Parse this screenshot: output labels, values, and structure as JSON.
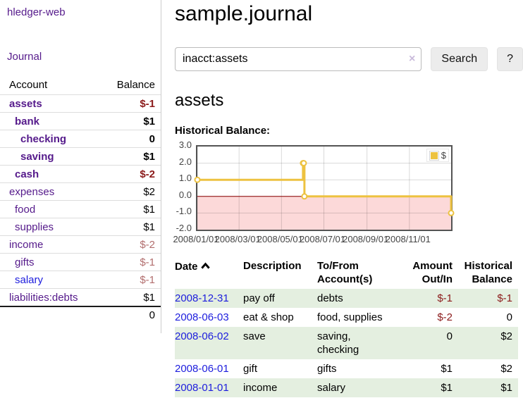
{
  "sidebar": {
    "brand": "hledger-web",
    "nav": {
      "journal": "Journal"
    },
    "accounts_table": {
      "headers": {
        "account": "Account",
        "balance": "Balance"
      },
      "rows": [
        {
          "name": "assets",
          "indent": 1,
          "bold": true,
          "link_color": "purple",
          "balance": "$-1",
          "balance_class": "neg-strong"
        },
        {
          "name": "bank",
          "indent": 2,
          "bold": true,
          "link_color": "purple",
          "balance": "$1",
          "balance_class": ""
        },
        {
          "name": "checking",
          "indent": 3,
          "bold": true,
          "link_color": "purple",
          "balance": "0",
          "balance_class": ""
        },
        {
          "name": "saving",
          "indent": 3,
          "bold": true,
          "link_color": "purple",
          "balance": "$1",
          "balance_class": ""
        },
        {
          "name": "cash",
          "indent": 2,
          "bold": true,
          "link_color": "purple",
          "balance": "$-2",
          "balance_class": "neg-strong"
        },
        {
          "name": "expenses",
          "indent": 1,
          "bold": false,
          "link_color": "purple",
          "balance": "$2",
          "balance_class": ""
        },
        {
          "name": "food",
          "indent": 2,
          "bold": false,
          "link_color": "purple",
          "balance": "$1",
          "balance_class": ""
        },
        {
          "name": "supplies",
          "indent": 2,
          "bold": false,
          "link_color": "purple",
          "balance": "$1",
          "balance_class": ""
        },
        {
          "name": "income",
          "indent": 1,
          "bold": false,
          "link_color": "purple",
          "balance": "$-2",
          "balance_class": "neg-light"
        },
        {
          "name": "gifts",
          "indent": 2,
          "bold": false,
          "link_color": "purple",
          "balance": "$-1",
          "balance_class": "neg-light"
        },
        {
          "name": "salary",
          "indent": 2,
          "bold": false,
          "link_color": "blue",
          "balance": "$-1",
          "balance_class": "neg-light"
        },
        {
          "name": "liabilities:debts",
          "indent": 1,
          "bold": false,
          "link_color": "purple",
          "balance": "$1",
          "balance_class": ""
        }
      ],
      "total": "0"
    }
  },
  "main": {
    "title": "sample.journal",
    "search": {
      "value": "inacct:assets",
      "clear_icon": "×",
      "button": "Search",
      "help_button": "?"
    },
    "account_heading": "assets",
    "chart_heading": "Historical Balance:"
  },
  "chart_data": {
    "type": "line",
    "step": true,
    "title": "Historical Balance",
    "series": [
      {
        "name": "$",
        "color": "#edc240",
        "points": [
          [
            "2008-01-01",
            1
          ],
          [
            "2008-06-01",
            2
          ],
          [
            "2008-06-02",
            2
          ],
          [
            "2008-06-03",
            0
          ],
          [
            "2008-12-31",
            -1
          ]
        ]
      }
    ],
    "x_range": [
      "2008-01-01",
      "2008-12-31"
    ],
    "ylim": [
      -2,
      3
    ],
    "y_ticks": [
      "3.0",
      "2.0",
      "1.0",
      "0.0",
      "-1.0",
      "-2.0"
    ],
    "x_ticks": [
      "2008/01/01",
      "2008/03/01",
      "2008/05/01",
      "2008/07/01",
      "2008/09/01",
      "2008/11/01"
    ],
    "grid": true,
    "negative_fill": "#fcd9d9",
    "zero_line_color": "#8b0000",
    "legend": {
      "label": "$",
      "position": "top-right"
    }
  },
  "register_table": {
    "headers": {
      "date": "Date",
      "sort_icon": "chevron-up",
      "description": "Description",
      "accounts": "To/From Account(s)",
      "amount": "Amount Out/In",
      "balance": "Historical Balance"
    },
    "rows": [
      {
        "date": "2008-12-31",
        "description": "pay off",
        "accounts": "debts",
        "amount": "$-1",
        "amount_class": "neg-strong",
        "balance": "$-1",
        "balance_class": "neg-strong",
        "shaded": true
      },
      {
        "date": "2008-06-03",
        "description": "eat & shop",
        "accounts": "food, supplies",
        "amount": "$-2",
        "amount_class": "neg-strong",
        "balance": "0",
        "balance_class": "",
        "shaded": false
      },
      {
        "date": "2008-06-02",
        "description": "save",
        "accounts": "saving, checking",
        "amount": "0",
        "amount_class": "",
        "balance": "$2",
        "balance_class": "",
        "shaded": true
      },
      {
        "date": "2008-06-01",
        "description": "gift",
        "accounts": "gifts",
        "amount": "$1",
        "amount_class": "",
        "balance": "$2",
        "balance_class": "",
        "shaded": false
      },
      {
        "date": "2008-01-01",
        "description": "income",
        "accounts": "salary",
        "amount": "$1",
        "amount_class": "",
        "balance": "$1",
        "balance_class": "",
        "shaded": true
      }
    ]
  },
  "colors": {
    "accent_purple": "#551a8b",
    "link_blue": "#1d1ddd",
    "negative_strong": "#8b1a1a",
    "negative_light": "#b26e6e",
    "row_shade_green": "#e4efe0",
    "chart_series_gold": "#edc240",
    "chart_negative_pink": "#fcd9d9",
    "chart_zero_line": "#8b0000"
  }
}
